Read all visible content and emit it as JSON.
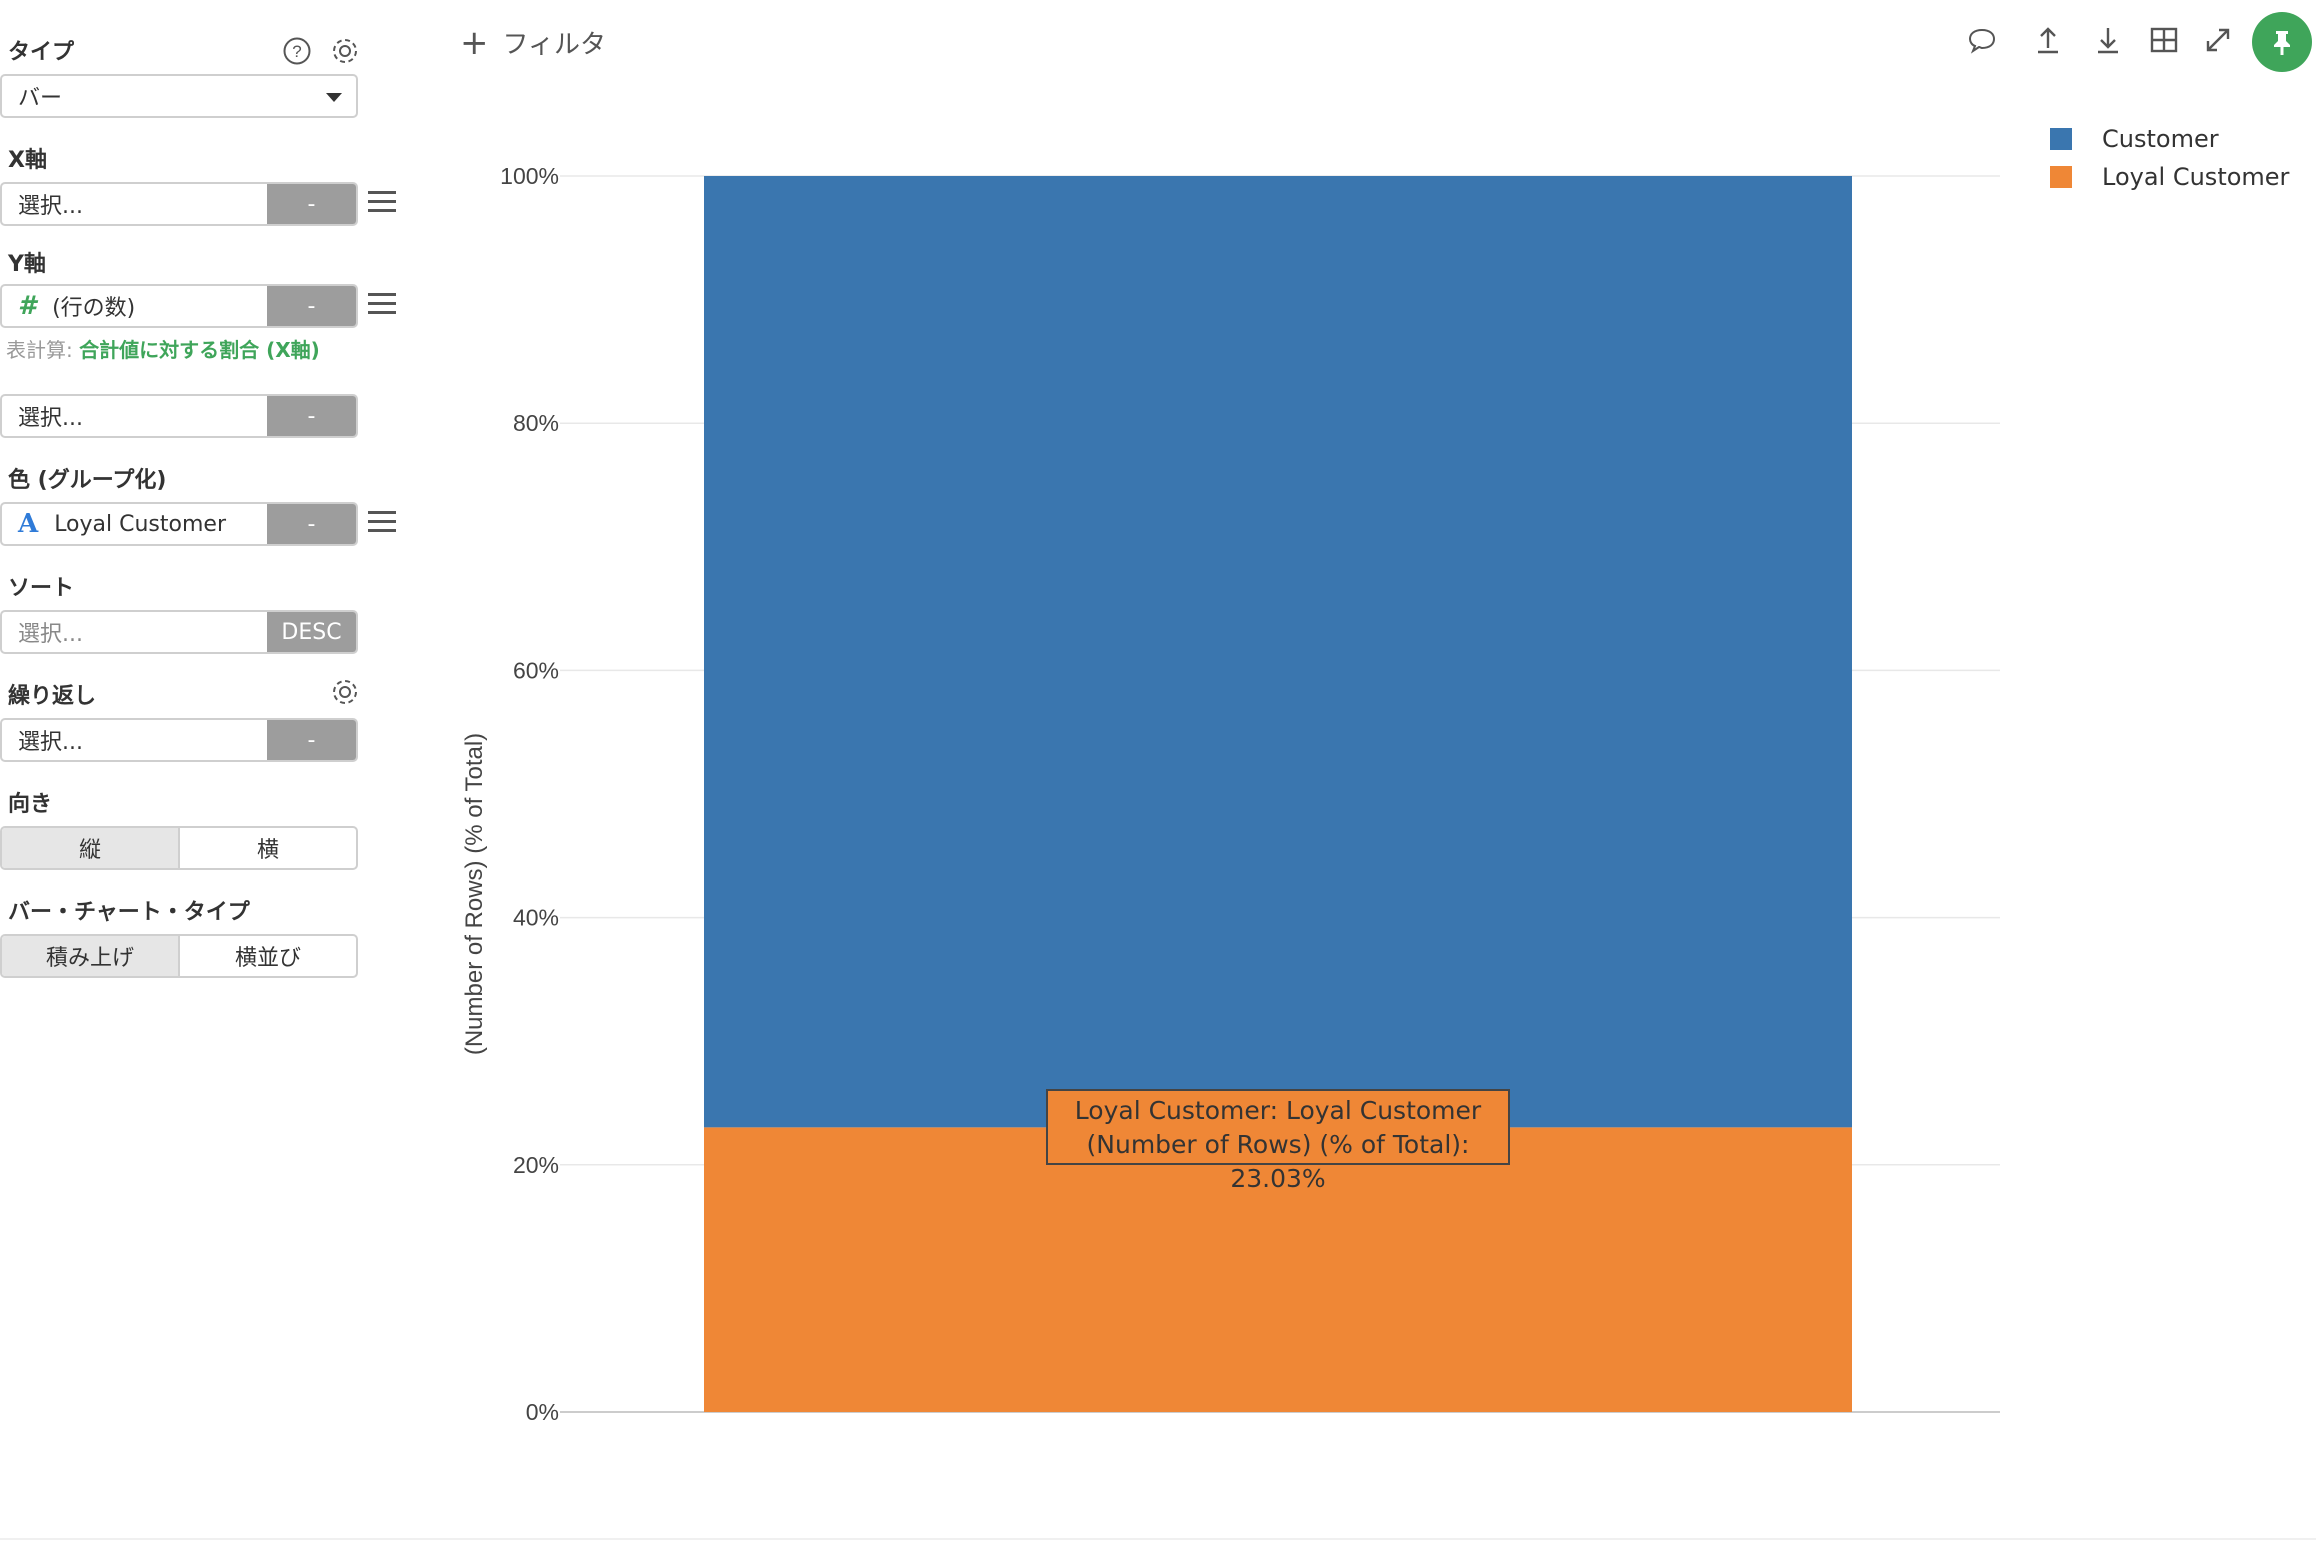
{
  "sidebar": {
    "type": {
      "label": "タイプ",
      "value": "バー"
    },
    "x_axis": {
      "label": "X軸",
      "value": "選択...",
      "button": "-"
    },
    "y_axis": {
      "label": "Y軸",
      "value": "(行の数)",
      "button": "-",
      "calc_label": "表計算:",
      "calc_value": "合計値に対する割合 (X軸)"
    },
    "y_axis2": {
      "value": "選択...",
      "button": "-"
    },
    "color": {
      "label": "色 (グループ化)",
      "value": "Loyal Customer",
      "button": "-"
    },
    "sort": {
      "label": "ソート",
      "placeholder": "選択...",
      "button": "DESC"
    },
    "repeat": {
      "label": "繰り返し",
      "value": "選択...",
      "button": "-"
    },
    "orientation": {
      "label": "向き",
      "options": [
        "縦",
        "横"
      ],
      "selected": "縦"
    },
    "bar_type": {
      "label": "バー・チャート・タイプ",
      "options": [
        "積み上げ",
        "横並び"
      ],
      "selected": "積み上げ"
    }
  },
  "toolbar": {
    "filter_label": "フィルタ",
    "icons": [
      "comment-icon",
      "upload-icon",
      "download-icon",
      "table-icon",
      "expand-icon",
      "pin-icon"
    ]
  },
  "colors": {
    "customer": "#3a76af",
    "loyal_customer": "#ef8736",
    "accent": "#3fa55a"
  },
  "tooltip": {
    "line1": "Loyal Customer: Loyal Customer",
    "line2": "(Number of Rows) (% of Total): 23.03%"
  },
  "chart_data": {
    "type": "bar",
    "stacked": true,
    "categories": [
      ""
    ],
    "series": [
      {
        "name": "Loyal Customer",
        "values": [
          23.03
        ],
        "color": "#ef8736"
      },
      {
        "name": "Customer",
        "values": [
          76.97
        ],
        "color": "#3a76af"
      }
    ],
    "ylabel": "(Number of Rows) (% of Total)",
    "xlabel": "",
    "ylim": [
      0,
      100
    ],
    "yticks": [
      "0%",
      "20%",
      "40%",
      "60%",
      "80%",
      "100%"
    ],
    "ytick_values": [
      0,
      20,
      40,
      60,
      80,
      100
    ],
    "legend": [
      "Customer",
      "Loyal Customer"
    ],
    "legend_position": "top-right",
    "grid": true
  }
}
